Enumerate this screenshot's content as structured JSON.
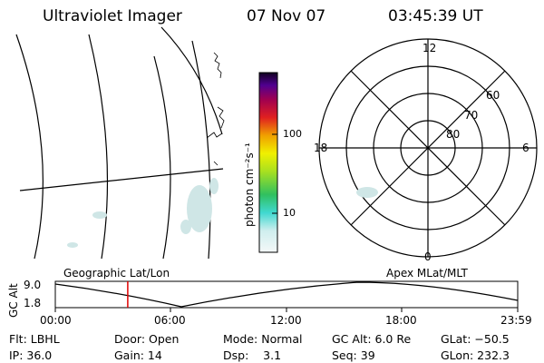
{
  "header": {
    "instrument": "Ultraviolet Imager",
    "date": "07 Nov 07",
    "time": "03:45:39 UT"
  },
  "colorbar": {
    "unit_label": "photon cm⁻²s⁻¹",
    "ticks": [
      "100",
      "10"
    ]
  },
  "polar_plot": {
    "mlt_labels": {
      "top": "12",
      "left": "18",
      "right": "6",
      "bottom": "0"
    },
    "lat_labels": [
      "60",
      "70",
      "80"
    ]
  },
  "map_labels": {
    "left": "Geographic Lat/Lon",
    "right": "Apex MLat/MLT"
  },
  "timeline": {
    "y_label": "GC Alt",
    "y_ticks": [
      "9.0",
      "1.8"
    ],
    "x_ticks": [
      "00:00",
      "06:00",
      "12:00",
      "18:00",
      "23:59"
    ],
    "marker_time_hours": 3.76
  },
  "info": {
    "row1": [
      "Flt: LBHL",
      "Door: Open",
      "Mode: Normal",
      "GC Alt: 6.0 Re",
      "GLat: −50.5"
    ],
    "row2": [
      "IP: 36.0",
      "Gain: 14",
      "Dsp:    3.1",
      "Seq: 39",
      "GLon: 232.3"
    ]
  },
  "colors": {
    "marker": "#e00000",
    "aurora": "#cfe6e6"
  }
}
